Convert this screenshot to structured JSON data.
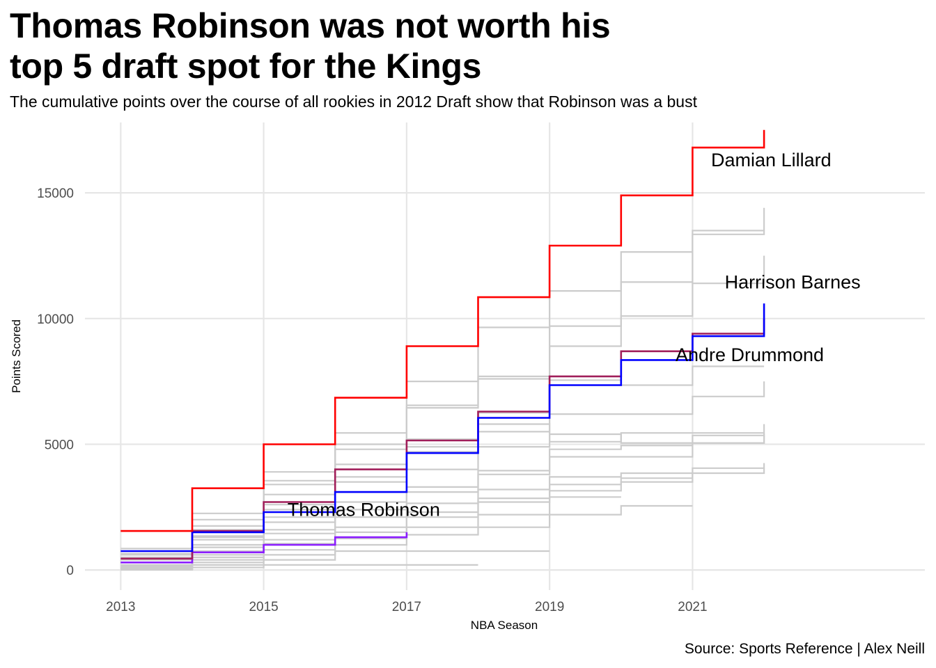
{
  "chart_data": {
    "type": "line",
    "title_lines": [
      "Thomas Robinson was not worth his",
      "top 5 draft spot for the Kings"
    ],
    "subtitle": "The cumulative points over the course of all rookies in 2012 Draft show that Robinson was a bust",
    "caption": "Source: Sports Reference | Alex Neill",
    "xlabel": "NBA Season",
    "ylabel": "Points Scored",
    "xlim": [
      2012.5,
      2024.25
    ],
    "ylim": [
      -800,
      17800
    ],
    "xticks": [
      2013,
      2015,
      2017,
      2019,
      2021
    ],
    "xtick_labels": [
      "2013",
      "2015",
      "2017",
      "2019",
      "2021"
    ],
    "yticks": [
      0,
      5000,
      10000,
      15000
    ],
    "ytick_labels": [
      "0",
      "5000",
      "10000",
      "15000"
    ],
    "grid": true,
    "legend": "none",
    "step": "post",
    "highlight_colors": {
      "Damian Lillard": "#ff0000",
      "Harrison Barnes": "#0000ff",
      "Andre Drummond": "#a01e5a",
      "Thomas Robinson": "#8a1cff",
      "other": "#cccccc"
    },
    "labels": [
      {
        "text": "Damian Lillard",
        "x": 2022.1,
        "y": 16300
      },
      {
        "text": "Harrison Barnes",
        "x": 2022.4,
        "y": 11450
      },
      {
        "text": "Andre Drummond",
        "x": 2021.8,
        "y": 8550
      },
      {
        "text": "Thomas Robinson",
        "x": 2016.4,
        "y": 2400
      }
    ],
    "series": [
      {
        "x": [
          2013,
          2014,
          2015,
          2016,
          2017,
          2018,
          2019,
          2020,
          2021,
          2022
        ],
        "y": [
          850,
          2250,
          3900,
          5450,
          7500,
          9650,
          11100,
          12650,
          13500,
          14400
        ]
      },
      {
        "x": [
          2013,
          2014,
          2015,
          2016,
          2017,
          2018,
          2019,
          2020,
          2021,
          2022
        ],
        "y": [
          650,
          2000,
          3550,
          5000,
          6550,
          7600,
          9700,
          11450,
          13350,
          13500
        ]
      },
      {
        "x": [
          2013,
          2014,
          2015,
          2016,
          2017,
          2018,
          2019,
          2020,
          2021,
          2022
        ],
        "y": [
          600,
          1750,
          3400,
          4800,
          6450,
          7700,
          8900,
          10100,
          11400,
          12500
        ]
      },
      {
        "x": [
          2013,
          2014,
          2015,
          2016,
          2017,
          2018,
          2019,
          2020,
          2021,
          2022
        ],
        "y": [
          300,
          1600,
          3000,
          4200,
          5200,
          6250,
          7550,
          7350,
          8100,
          8100
        ]
      },
      {
        "x": [
          2013,
          2014,
          2015,
          2016,
          2017,
          2018,
          2019,
          2020,
          2021,
          2022
        ],
        "y": [
          500,
          1350,
          2600,
          3700,
          4700,
          5500,
          6200,
          6200,
          6900,
          7500
        ]
      },
      {
        "x": [
          2013,
          2014,
          2015,
          2016,
          2017,
          2018,
          2019,
          2020,
          2021,
          2022
        ],
        "y": [
          400,
          1300,
          2400,
          3500,
          4900,
          5800,
          5100,
          5450,
          5450,
          5800
        ]
      },
      {
        "x": [
          2013,
          2014,
          2015,
          2016,
          2017,
          2018,
          2019,
          2020,
          2021,
          2022
        ],
        "y": [
          200,
          1200,
          2100,
          3100,
          4000,
          4900,
          5400,
          5050,
          5350,
          5450
        ]
      },
      {
        "x": [
          2013,
          2014,
          2015,
          2016,
          2017,
          2018,
          2019,
          2020,
          2021,
          2022
        ],
        "y": [
          150,
          1000,
          1900,
          2700,
          3300,
          3950,
          4800,
          4950,
          5050,
          5400
        ]
      },
      {
        "x": [
          2013,
          2014,
          2015,
          2016,
          2017,
          2018,
          2019,
          2020,
          2021,
          2022
        ],
        "y": [
          100,
          900,
          1600,
          2400,
          3100,
          3800,
          4500,
          4500,
          5050,
          5350
        ]
      },
      {
        "x": [
          2013,
          2014,
          2015,
          2016,
          2017,
          2018,
          2019,
          2020,
          2021,
          2022
        ],
        "y": [
          80,
          750,
          1450,
          2100,
          2650,
          3200,
          3700,
          3850,
          4050,
          4250
        ]
      },
      {
        "x": [
          2013,
          2014,
          2015,
          2016,
          2017,
          2018,
          2019,
          2020,
          2021,
          2022
        ],
        "y": [
          60,
          600,
          1200,
          1700,
          2300,
          2850,
          3400,
          3650,
          3850,
          4050
        ]
      },
      {
        "x": [
          2013,
          2014,
          2015,
          2016,
          2017,
          2018,
          2019,
          2020,
          2021
        ],
        "y": [
          40,
          500,
          1050,
          1500,
          2100,
          2700,
          3150,
          3500,
          3850
        ]
      },
      {
        "x": [
          2013,
          2014,
          2015,
          2016,
          2017,
          2018,
          2019,
          2020
        ],
        "y": [
          30,
          400,
          800,
          1250,
          1700,
          2200,
          2900,
          2900
        ]
      },
      {
        "x": [
          2013,
          2014,
          2015,
          2016,
          2017,
          2018,
          2019,
          2020,
          2021
        ],
        "y": [
          20,
          300,
          600,
          1000,
          1400,
          1700,
          2200,
          2550,
          2550
        ]
      },
      {
        "x": [
          2013,
          2014,
          2015,
          2016,
          2017,
          2018,
          2019
        ],
        "y": [
          10,
          200,
          400,
          750,
          750,
          750,
          750
        ]
      },
      {
        "x": [
          2013,
          2014,
          2015,
          2016,
          2017,
          2018
        ],
        "y": [
          5,
          100,
          200,
          200,
          200,
          200
        ]
      },
      {
        "name": "Thomas Robinson",
        "x": [
          2013,
          2014,
          2015,
          2016,
          2017
        ],
        "y": [
          300,
          700,
          1000,
          1300,
          1500
        ]
      },
      {
        "name": "Andre Drummond",
        "x": [
          2013,
          2014,
          2015,
          2016,
          2017,
          2018,
          2019,
          2020,
          2021,
          2022
        ],
        "y": [
          450,
          1550,
          2700,
          4000,
          5150,
          6300,
          7700,
          8700,
          9400,
          10000
        ]
      },
      {
        "name": "Harrison Barnes",
        "x": [
          2013,
          2014,
          2015,
          2016,
          2017,
          2018,
          2019,
          2020,
          2021,
          2022
        ],
        "y": [
          750,
          1500,
          2300,
          3100,
          4650,
          6050,
          7350,
          8350,
          9300,
          10600
        ]
      },
      {
        "name": "Damian Lillard",
        "x": [
          2013,
          2014,
          2015,
          2016,
          2017,
          2018,
          2019,
          2020,
          2021,
          2022
        ],
        "y": [
          1550,
          3250,
          5000,
          6850,
          8900,
          10850,
          12900,
          14900,
          16800,
          17500
        ]
      }
    ]
  }
}
